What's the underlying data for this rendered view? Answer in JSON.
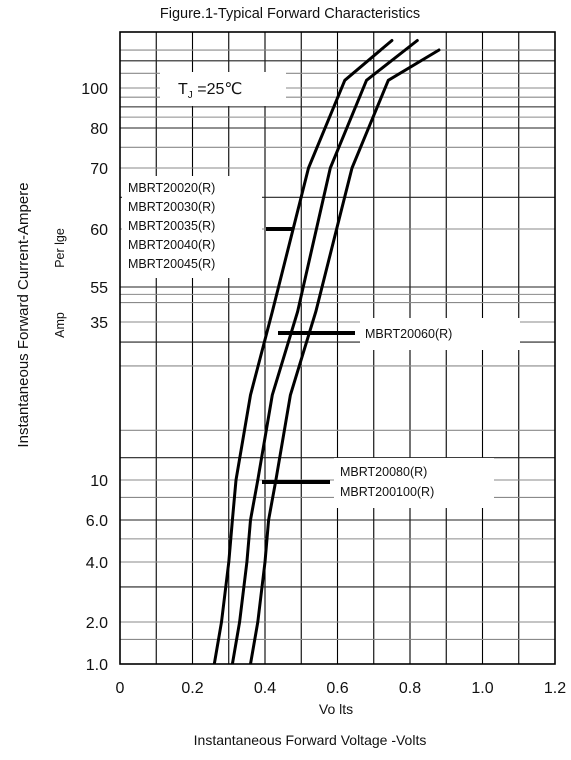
{
  "chart_data": {
    "type": "line",
    "title": "Figure.1-Typical Forward Characteristics",
    "xlabel": "Vo lts",
    "xlabel_secondary": "Instantaneous  Forward Voltage -Volts",
    "ylabel": "Instantaneous  Forward  Current-Ampere",
    "ylabel_unit_top": "Per lge",
    "ylabel_unit_bottom": "Amp",
    "xlim": [
      0,
      1.2
    ],
    "x_ticks": [
      "0",
      "0.2",
      "0.4",
      "0.6",
      "0.8",
      "1.0",
      "1.2"
    ],
    "y_scale": "log",
    "y_ticks": [
      "1.0",
      "2.0",
      "4.0",
      "6.0",
      "10",
      "35",
      "55",
      "60",
      "70",
      "80",
      "100"
    ],
    "grid": true,
    "condition_label": "T",
    "condition_sub": "J",
    "condition_rest": " =25℃",
    "series": [
      {
        "labels": [
          "MBRT20020(R)",
          "MBRT20030(R)",
          "MBRT20035(R)",
          "MBRT20040(R)",
          "MBRT20045(R)"
        ],
        "points": [
          [
            0.26,
            1.0
          ],
          [
            0.28,
            2.0
          ],
          [
            0.3,
            4.0
          ],
          [
            0.31,
            6.0
          ],
          [
            0.32,
            10
          ],
          [
            0.36,
            20
          ],
          [
            0.42,
            40
          ],
          [
            0.52,
            70
          ],
          [
            0.62,
            110
          ],
          [
            0.75,
            180
          ]
        ]
      },
      {
        "labels": [
          "MBRT20060(R)"
        ],
        "points": [
          [
            0.31,
            1.0
          ],
          [
            0.33,
            2.0
          ],
          [
            0.35,
            4.0
          ],
          [
            0.36,
            6.0
          ],
          [
            0.38,
            10
          ],
          [
            0.42,
            20
          ],
          [
            0.49,
            40
          ],
          [
            0.58,
            70
          ],
          [
            0.68,
            110
          ],
          [
            0.82,
            180
          ]
        ]
      },
      {
        "labels": [
          "MBRT20080(R)",
          "MBRT200100(R)"
        ],
        "points": [
          [
            0.36,
            1.0
          ],
          [
            0.38,
            2.0
          ],
          [
            0.4,
            4.0
          ],
          [
            0.41,
            6.0
          ],
          [
            0.43,
            10
          ],
          [
            0.47,
            20
          ],
          [
            0.54,
            40
          ],
          [
            0.64,
            70
          ],
          [
            0.74,
            110
          ],
          [
            0.88,
            160
          ]
        ]
      }
    ]
  }
}
